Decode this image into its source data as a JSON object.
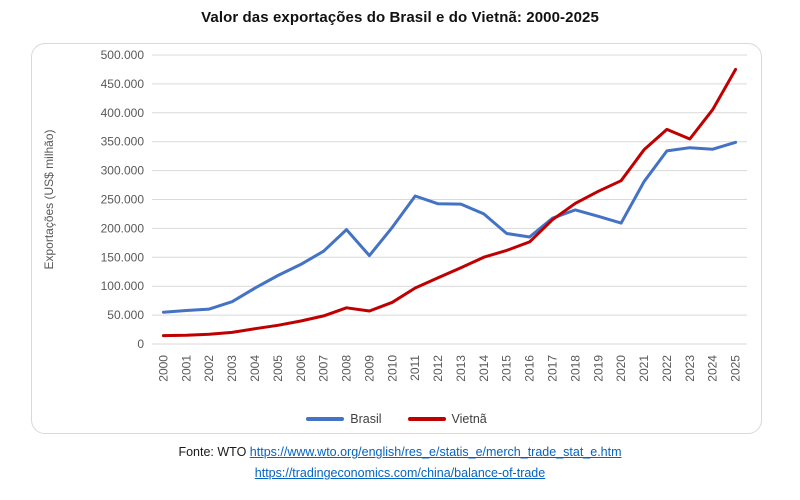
{
  "title": "Valor das exportações do Brasil e do Vietnã: 2000-2025",
  "chart_data": {
    "type": "line",
    "title": "Valor das exportações do Brasil e do Vietnã: 2000-2025",
    "ylabel": "Exportações (US$ milhão)",
    "ylim": [
      0,
      500000
    ],
    "grid": true,
    "legend_position": "bottom",
    "x": [
      "2000",
      "2001",
      "2002",
      "2003",
      "2004",
      "2005",
      "2006",
      "2007",
      "2008",
      "2009",
      "2010",
      "2011",
      "2012",
      "2013",
      "2014",
      "2015",
      "2016",
      "2017",
      "2018",
      "2019",
      "2020",
      "2021",
      "2022",
      "2023",
      "2024",
      "2025"
    ],
    "ytick_values": [
      0,
      50000,
      100000,
      150000,
      200000,
      250000,
      300000,
      350000,
      400000,
      450000,
      500000
    ],
    "ytick_labels": [
      "0",
      "50.000",
      "100.000",
      "150.000",
      "200.000",
      "250.000",
      "300.000",
      "350.000",
      "400.000",
      "450.000",
      "500.000"
    ],
    "series": [
      {
        "name": "Brasil",
        "color": "#4472C4",
        "values": [
          55000,
          58000,
          60400,
          73200,
          96700,
          118500,
          137800,
          160600,
          197900,
          153000,
          201900,
          256000,
          242600,
          242000,
          225100,
          191100,
          185200,
          217700,
          232000,
          221000,
          209200,
          280800,
          334100,
          339700,
          337000,
          349000
        ]
      },
      {
        "name": "Vietnã",
        "color": "#C00000",
        "values": [
          14500,
          15000,
          16700,
          20100,
          26500,
          32400,
          39800,
          48600,
          62700,
          57100,
          72200,
          96900,
          114500,
          132000,
          150200,
          162000,
          176600,
          215100,
          243500,
          264200,
          282600,
          336000,
          371300,
          354700,
          405500,
          475000
        ]
      }
    ]
  },
  "footer": {
    "source_prefix": "Fonte: WTO",
    "link1": "https://www.wto.org/english/res_e/statis_e/merch_trade_stat_e.htm",
    "link2": "https://tradingeconomics.com/china/balance-of-trade"
  }
}
